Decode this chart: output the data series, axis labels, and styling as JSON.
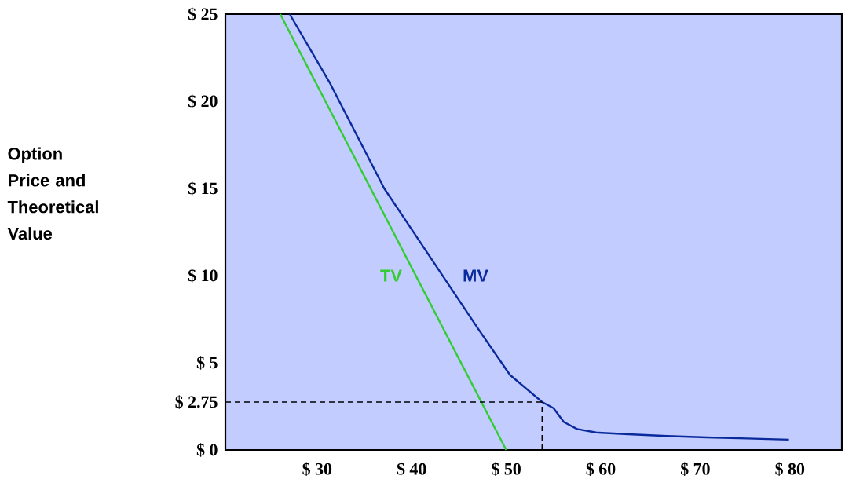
{
  "chart_data": {
    "type": "line",
    "ylabel": "Option Price and Theoretical Value",
    "xlim": [
      20.3,
      85.5
    ],
    "ylim": [
      0,
      25
    ],
    "xticks": [
      {
        "value": 30,
        "label": "$ 30"
      },
      {
        "value": 40,
        "label": "$ 40"
      },
      {
        "value": 50,
        "label": "$ 50"
      },
      {
        "value": 60,
        "label": "$ 60"
      },
      {
        "value": 70,
        "label": "$ 70"
      },
      {
        "value": 80,
        "label": "$ 80"
      }
    ],
    "yticks": [
      {
        "value": 0,
        "label": "$ 0"
      },
      {
        "value": 2.75,
        "label": "$ 2.75"
      },
      {
        "value": 5,
        "label": "$ 5"
      },
      {
        "value": 10,
        "label": "$ 10"
      },
      {
        "value": 15,
        "label": "$ 15"
      },
      {
        "value": 20,
        "label": "$ 20"
      },
      {
        "value": 25,
        "label": "$ 25"
      }
    ],
    "series": [
      {
        "name": "TV",
        "color": "#33cc33",
        "x": [
          26.1,
          50
        ],
        "values": [
          25,
          0
        ]
      },
      {
        "name": "MV",
        "color": "#0a2a9c",
        "x": [
          27.1,
          31.3,
          37.1,
          42.9,
          47.1,
          50.4,
          53.8,
          55.0,
          56.1,
          57.5,
          59.5,
          62.9,
          67,
          71.2,
          75.5,
          79.9
        ],
        "values": [
          25,
          21.1,
          15.0,
          10.3,
          6.9,
          4.3,
          2.75,
          2.4,
          1.6,
          1.2,
          1.0,
          0.9,
          0.8,
          0.72,
          0.66,
          0.59
        ]
      }
    ],
    "ref_lines": [
      {
        "axis": "y",
        "value": 2.75,
        "color": "#000000",
        "line_style": "dashed"
      },
      {
        "axis": "x",
        "value": 53.8,
        "color": "#000000",
        "line_style": "dashed"
      }
    ],
    "grid": false,
    "marker": "none",
    "line_style": "solid"
  }
}
